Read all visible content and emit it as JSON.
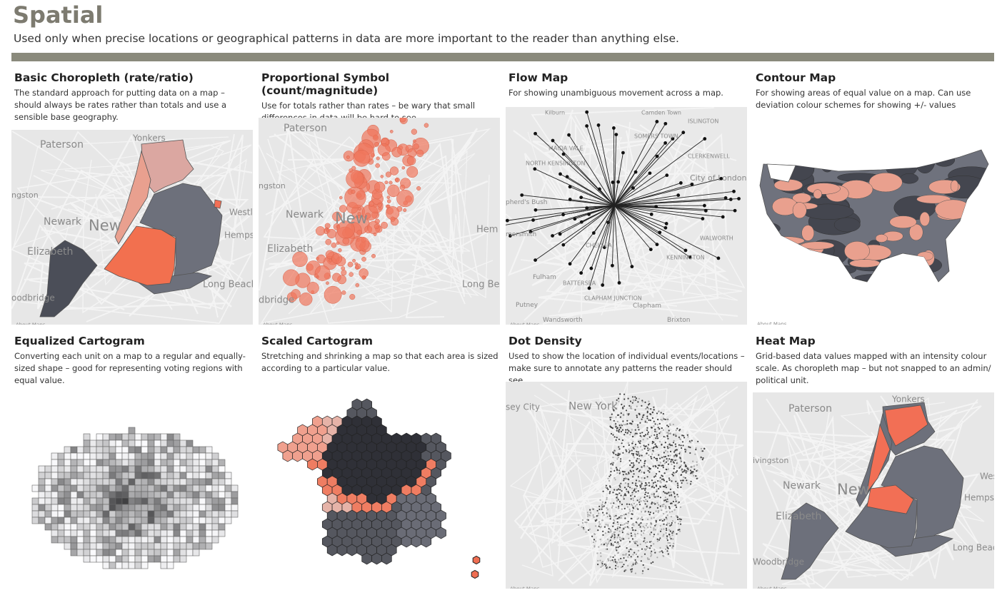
{
  "header": {
    "title": "Spatial",
    "subtitle": "Used only when precise locations or geographical patterns in data are more important to the reader than anything else."
  },
  "cards": [
    {
      "title": "Basic Choropleth (rate/ratio)",
      "description": "The standard approach for putting data on a map – should always be rates rather than totals and use a sensible base geography.",
      "map_labels": [
        "Paterson",
        "Yonkers",
        "ngston",
        "Newark",
        "New",
        "Westl",
        "Hempste",
        "Elizabeth",
        "Long Beach",
        "oodbridge",
        "About Maps"
      ]
    },
    {
      "title": "Proportional Symbol (count/magnitude)",
      "description": "Use for totals rather than rates – be wary that small differences in data will be hard to see.",
      "map_labels": [
        "Paterson",
        "ngston",
        "Newark",
        "New",
        "Hem",
        "Elizabeth",
        "Long Beach",
        "dbridge",
        "About Maps"
      ]
    },
    {
      "title": "Flow Map",
      "description": "For showing unambiguous movement across a map.",
      "map_labels": [
        "Kilburn",
        "Camden Town",
        "ISLINGTON",
        "MAIDA VALE",
        "SOMERS TOWN",
        "CLERKENWELL",
        "NORTH KENSINGTON",
        "City of London",
        "pherd's Bush",
        "mersmith",
        "CHELSEA",
        "WALWORTH",
        "KENNINGTON",
        "Fulham",
        "BATTERSEA",
        "Putney",
        "CLAPHAM JUNCTION",
        "Clapham",
        "Wandsworth",
        "Brixton",
        "About Maps"
      ]
    },
    {
      "title": "Contour Map",
      "description": "For showing areas of equal value on a map. Can use deviation colour schemes for showing +/- values",
      "map_labels": [
        "About Maps"
      ]
    },
    {
      "title": "Equalized Cartogram",
      "description": "Converting each unit on a map to a regular and equally-sized shape – good for representing voting regions with equal value.",
      "map_labels": []
    },
    {
      "title": "Scaled Cartogram",
      "description": "Stretching and shrinking a map so that each area is sized according to a particular value.",
      "map_labels": []
    },
    {
      "title": "Dot Density",
      "description": "Used to show the location of individual events/locations – make sure to annotate any patterns the reader should see.",
      "map_labels": [
        "New York",
        "sey City",
        "About Maps"
      ]
    },
    {
      "title": "Heat Map",
      "description": "Grid-based data values mapped with an intensity colour scale. As choropleth map – but not snapped to an admin/ political unit.",
      "map_labels": [
        "Yonkers",
        "Paterson",
        "ivingston",
        "Newark",
        "New",
        "Wes",
        "Hemps",
        "Elizabeth",
        "Long Beac",
        "Woodbridge",
        "About Maps"
      ]
    }
  ]
}
